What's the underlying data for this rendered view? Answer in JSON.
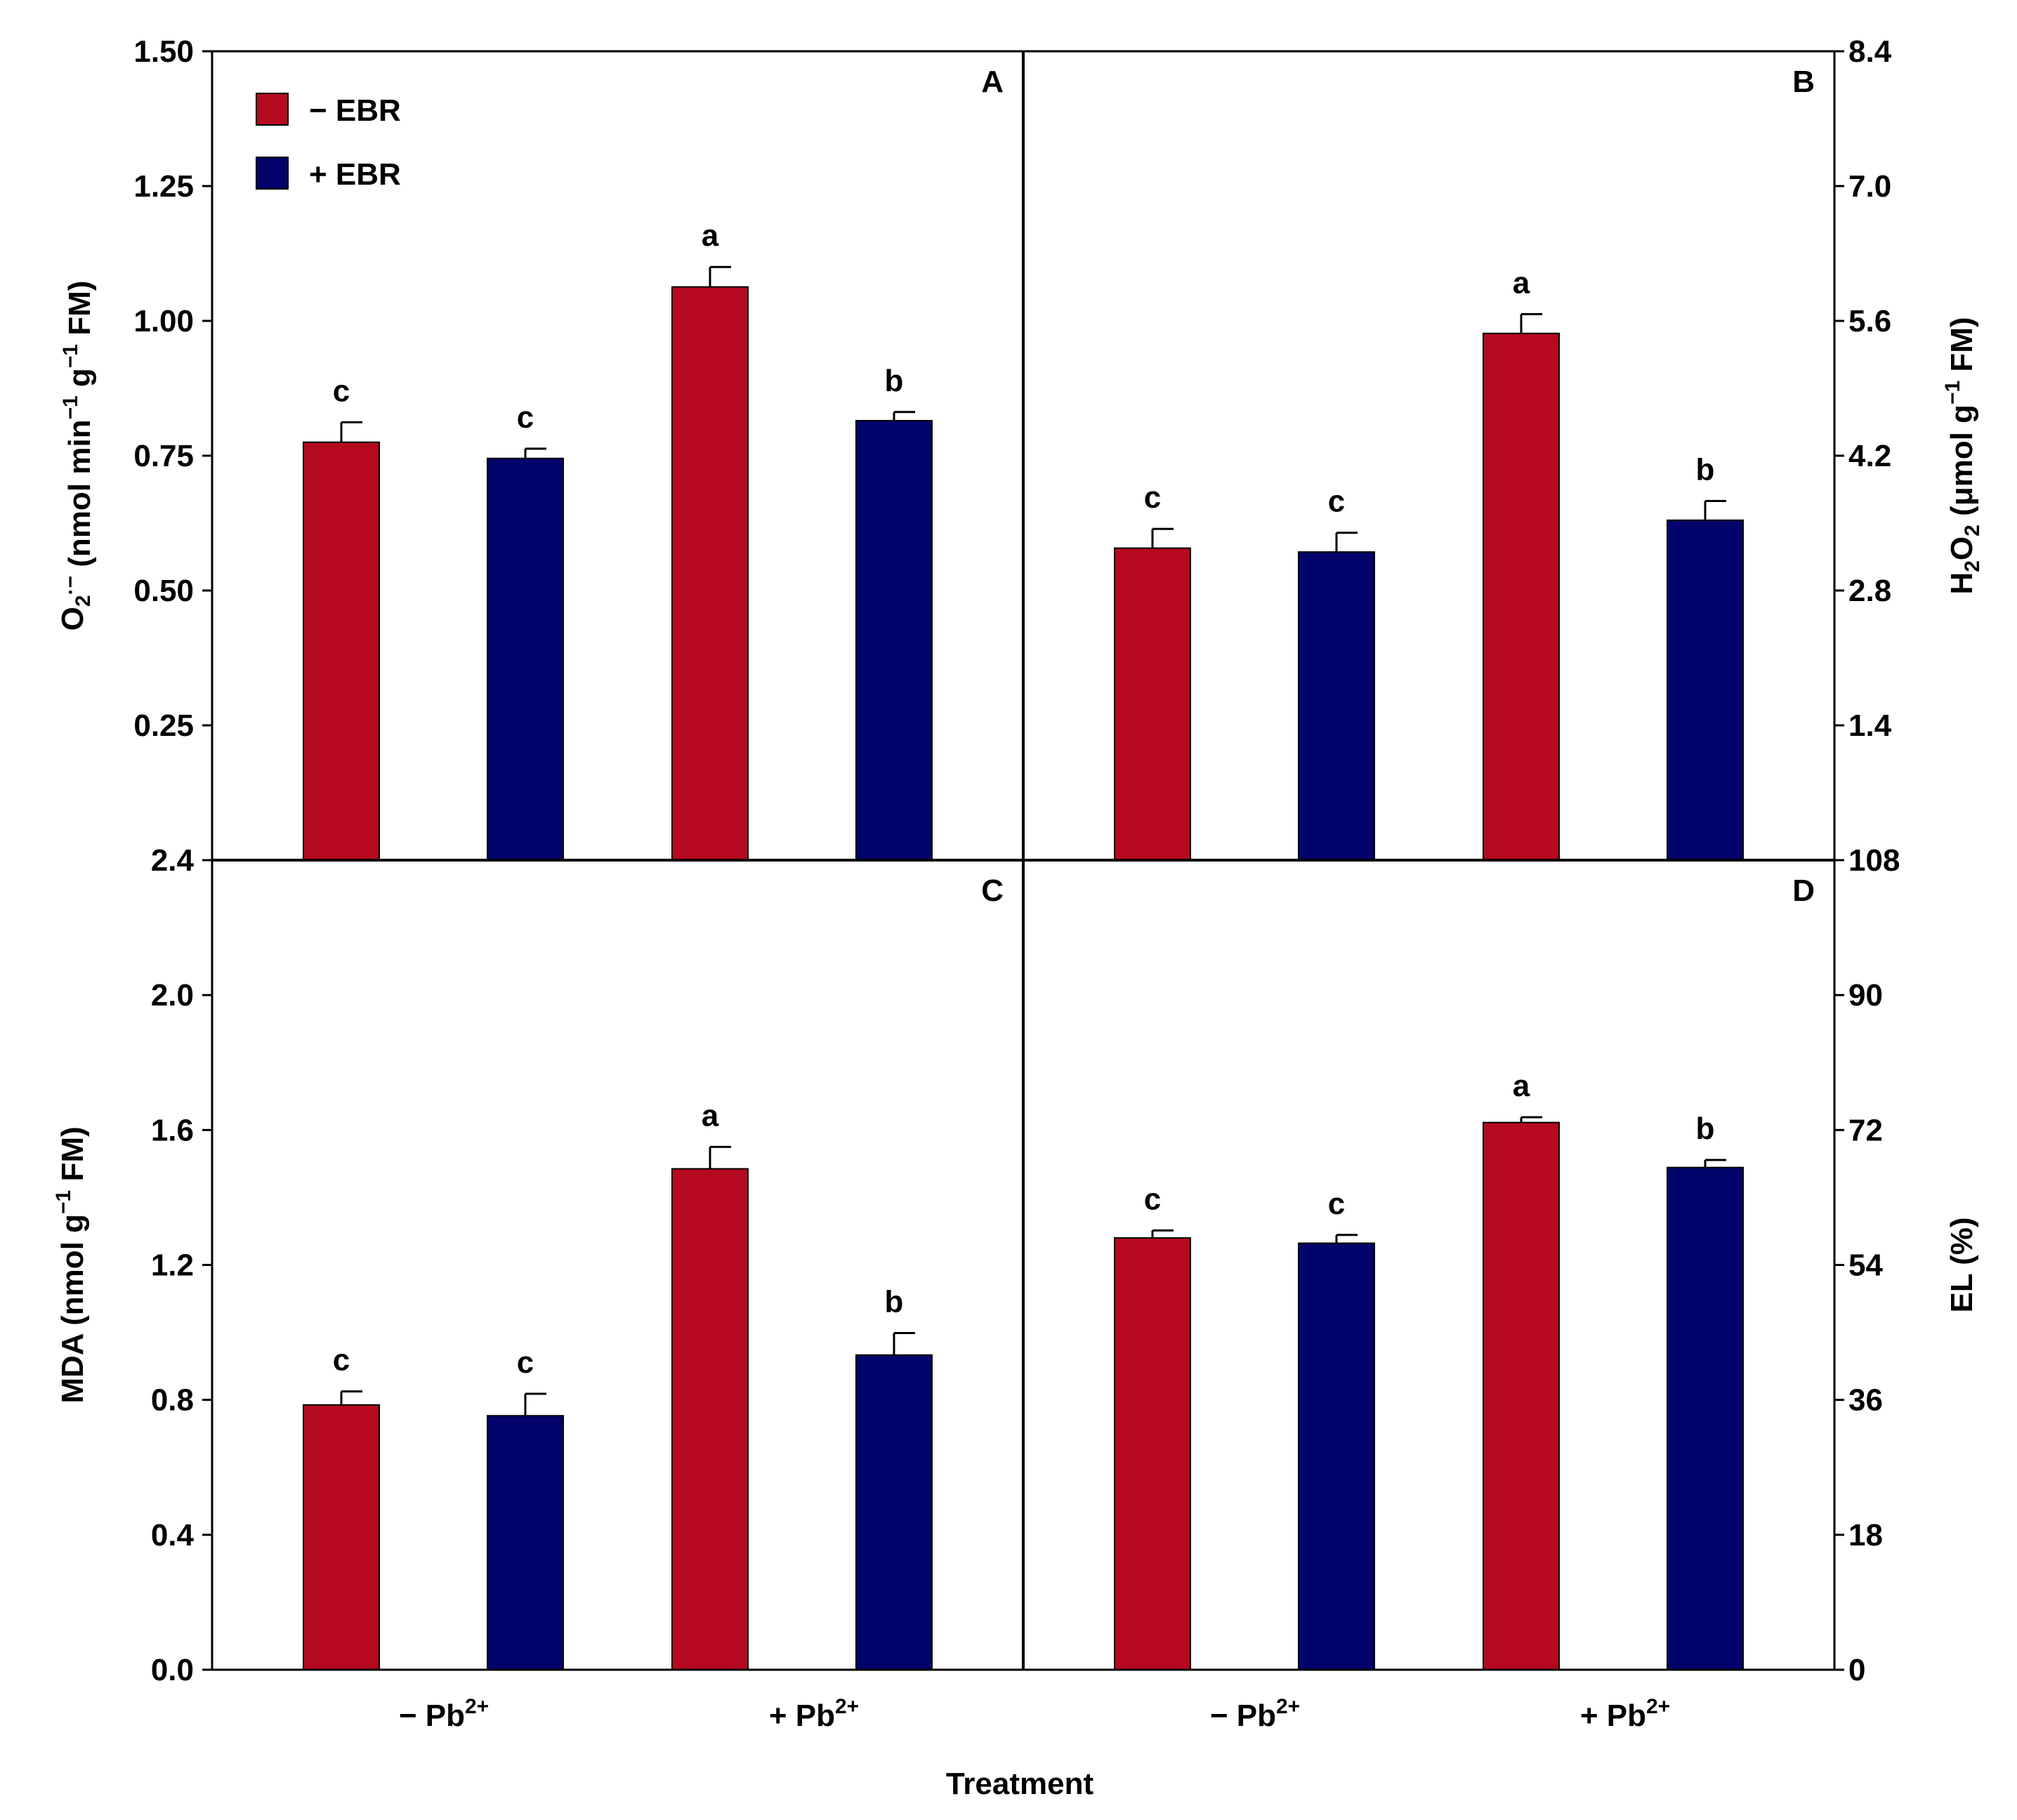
{
  "colors": {
    "minus_ebr": "#b5091f",
    "plus_ebr": "#02036b"
  },
  "x_axis_title": "Treatment",
  "legend": [
    {
      "label": "− EBR",
      "series": "minus_ebr"
    },
    {
      "label": "+ EBR",
      "series": "plus_ebr"
    }
  ],
  "chart_data": [
    {
      "panel": "A",
      "type": "bar",
      "categories": [
        "− Pb2+",
        "+ Pb2+"
      ],
      "ylabel_parts": [
        "O",
        "2",
        "·−",
        " (nmol min",
        "−1",
        " g",
        "−1",
        " FM)"
      ],
      "ylim": [
        0,
        1.5
      ],
      "yticks": [
        "1.50",
        "1.25",
        "1.00",
        "0.75",
        "0.50",
        "0.25"
      ],
      "ytick_values": [
        1.5,
        1.25,
        1.0,
        0.75,
        0.5,
        0.25
      ],
      "series": [
        {
          "name": "− EBR",
          "values": [
            0.775,
            1.063
          ],
          "errors": [
            0.037,
            0.037
          ],
          "letters": [
            "c",
            "a"
          ]
        },
        {
          "name": "+ EBR",
          "values": [
            0.745,
            0.815
          ],
          "errors": [
            0.018,
            0.016
          ],
          "letters": [
            "c",
            "b"
          ]
        }
      ]
    },
    {
      "panel": "B",
      "type": "bar",
      "categories": [
        "− Pb2+",
        "+ Pb2+"
      ],
      "ylabel_parts": [
        "H",
        "2",
        "O",
        "2",
        " (μmol g",
        "−1",
        " FM)"
      ],
      "ylim": [
        0,
        8.4
      ],
      "yticks": [
        "8.4",
        "7.0",
        "5.6",
        "4.2",
        "2.8",
        "1.4"
      ],
      "ytick_values": [
        8.4,
        7.0,
        5.6,
        4.2,
        2.8,
        1.4
      ],
      "series": [
        {
          "name": "− EBR",
          "values": [
            3.24,
            5.47
          ],
          "errors": [
            0.2,
            0.2
          ],
          "letters": [
            "c",
            "a"
          ]
        },
        {
          "name": "+ EBR",
          "values": [
            3.2,
            3.53
          ],
          "errors": [
            0.2,
            0.2
          ],
          "letters": [
            "c",
            "b"
          ]
        }
      ]
    },
    {
      "panel": "C",
      "type": "bar",
      "categories": [
        "− Pb2+",
        "+ Pb2+"
      ],
      "ylabel_parts": [
        "MDA (nmol g",
        "−1",
        " FM)"
      ],
      "ylim": [
        0,
        2.4
      ],
      "yticks": [
        "2.4",
        "2.0",
        "1.6",
        "1.2",
        "0.8",
        "0.4",
        "0.0"
      ],
      "ytick_values": [
        2.4,
        2.0,
        1.6,
        1.2,
        0.8,
        0.4,
        0.0
      ],
      "series": [
        {
          "name": "− EBR",
          "values": [
            0.785,
            1.485
          ],
          "errors": [
            0.04,
            0.065
          ],
          "letters": [
            "c",
            "a"
          ]
        },
        {
          "name": "+ EBR",
          "values": [
            0.753,
            0.933
          ],
          "errors": [
            0.065,
            0.065
          ],
          "letters": [
            "c",
            "b"
          ]
        }
      ]
    },
    {
      "panel": "D",
      "type": "bar",
      "categories": [
        "− Pb2+",
        "+ Pb2+"
      ],
      "ylabel_parts": [
        "EL (%)"
      ],
      "ylim": [
        0,
        108
      ],
      "yticks": [
        "108",
        "90",
        "72",
        "54",
        "36",
        "18",
        "0"
      ],
      "ytick_values": [
        108,
        90,
        72,
        54,
        36,
        18,
        0
      ],
      "series": [
        {
          "name": "− EBR",
          "values": [
            57.6,
            73.0
          ],
          "errors": [
            1.0,
            0.7
          ],
          "letters": [
            "c",
            "a"
          ]
        },
        {
          "name": "+ EBR",
          "values": [
            56.9,
            67.0
          ],
          "errors": [
            1.1,
            1.0
          ],
          "letters": [
            "c",
            "b"
          ]
        }
      ]
    }
  ]
}
